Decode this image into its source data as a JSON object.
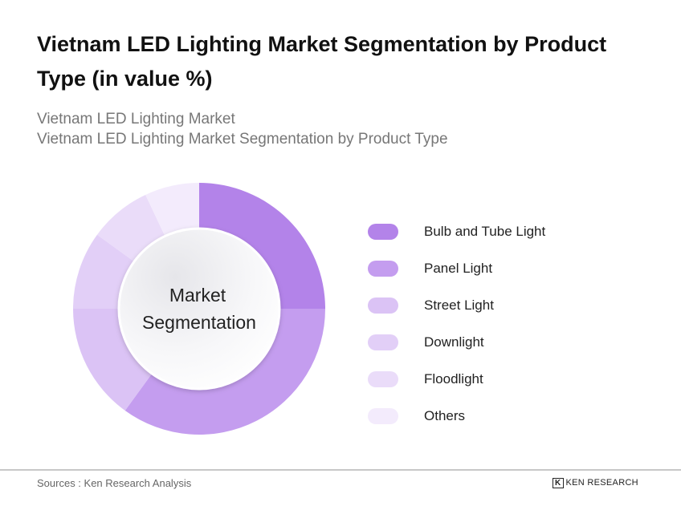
{
  "title": "Vietnam LED Lighting Market Segmentation by Product Type (in value %)",
  "subtitle1": "Vietnam LED Lighting Market",
  "subtitle2": "Vietnam LED Lighting Market Segmentation by Product Type",
  "chart_data": {
    "type": "pie",
    "donut": true,
    "center_label": [
      "Market",
      "Segmentation"
    ],
    "legend_position": "right",
    "categories": [
      "Bulb and Tube Light",
      "Panel Light",
      "Street Light",
      "Downlight",
      "Floodlight",
      "Others"
    ],
    "values": [
      25,
      35,
      15,
      10,
      8,
      7
    ],
    "colors": [
      "#b383e9",
      "#c49def",
      "#dbc3f5",
      "#e2cff7",
      "#eadcf9",
      "#f3ebfc"
    ]
  },
  "footer": {
    "source": "Sources : Ken Research Analysis",
    "logo": "KEN RESEARCH"
  }
}
